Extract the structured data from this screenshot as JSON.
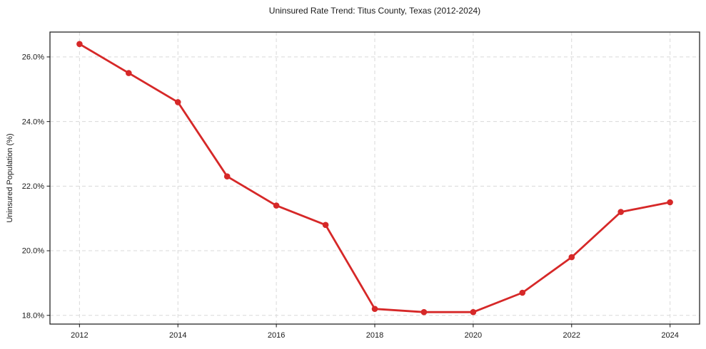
{
  "title": "Uninsured Rate Trend: Titus County, Texas (2012-2024)",
  "colors": {
    "line": "#d62828",
    "marker": "#d62828",
    "grid": "#d9d9d9",
    "spine": "#262626",
    "tick_text": "#1a1a1a",
    "background": "#ffffff"
  },
  "chart_data": {
    "type": "line",
    "title": "Uninsured Rate Trend: Titus County, Texas (2012-2024)",
    "xlabel": "",
    "ylabel": "Uninsured Population (%)",
    "x": [
      2012,
      2013,
      2014,
      2015,
      2016,
      2017,
      2018,
      2019,
      2020,
      2021,
      2022,
      2023,
      2024
    ],
    "values": [
      26.4,
      25.5,
      24.6,
      22.3,
      21.4,
      20.8,
      18.2,
      18.1,
      18.1,
      18.7,
      19.8,
      21.2,
      21.5
    ],
    "xtick_values": [
      2012,
      2014,
      2016,
      2018,
      2020,
      2022,
      2024
    ],
    "xtick_labels": [
      "2012",
      "2014",
      "2016",
      "2018",
      "2020",
      "2022",
      "2024"
    ],
    "ytick_values": [
      18,
      20,
      22,
      24,
      26
    ],
    "ytick_labels": [
      "18.0%",
      "20.0%",
      "22.0%",
      "24.0%",
      "26.0%"
    ],
    "xlim": [
      2011.4,
      2024.6
    ],
    "ylim": [
      17.73,
      26.77
    ],
    "grid": true,
    "grid_style": "dashed",
    "legend": false,
    "marker": "circle"
  }
}
